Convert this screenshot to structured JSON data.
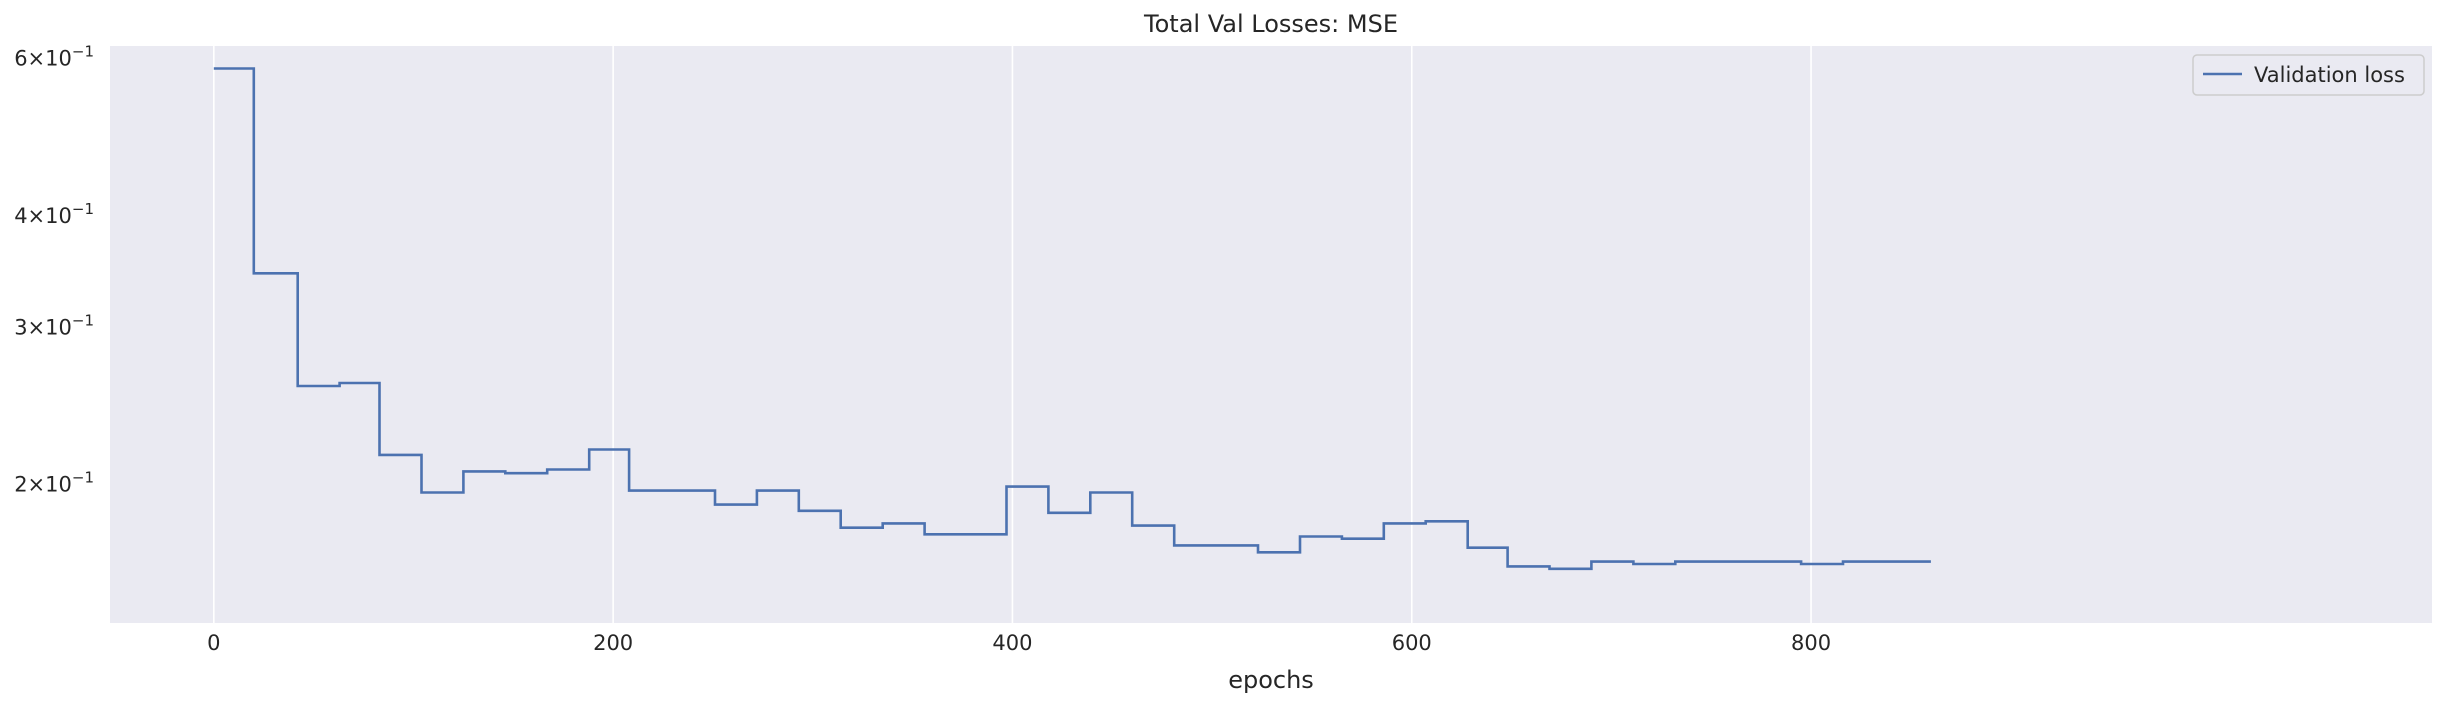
{
  "chart_data": {
    "type": "line",
    "title": "Total Val Losses:  MSE",
    "xlabel": "epochs",
    "ylabel": "",
    "yscale": "log",
    "xlim": [
      -52,
      1111
    ],
    "ylim": [
      0.14,
      0.62
    ],
    "grid": "vertical only",
    "legend_position": "top-right",
    "background": "#eaeaf2",
    "x_ticks": [
      {
        "value": 0,
        "label": "0"
      },
      {
        "value": 200,
        "label": "200"
      },
      {
        "value": 400,
        "label": "400"
      },
      {
        "value": 600,
        "label": "600"
      },
      {
        "value": 800,
        "label": "800"
      }
    ],
    "y_ticks": [
      {
        "value": 0.6,
        "mantissa": "6",
        "base": "10",
        "exponent": "−1"
      },
      {
        "value": 0.4,
        "mantissa": "4",
        "base": "10",
        "exponent": "−1"
      },
      {
        "value": 0.3,
        "mantissa": "3",
        "base": "10",
        "exponent": "−1"
      },
      {
        "value": 0.2,
        "mantissa": "2",
        "base": "10",
        "exponent": "−1"
      }
    ],
    "series": [
      {
        "name": "Validation loss",
        "color": "#4c72b0",
        "step_x": [
          0,
          20,
          42,
          63,
          83,
          104,
          125,
          146,
          167,
          188,
          208,
          230,
          251,
          272,
          293,
          314,
          335,
          356,
          376,
          397,
          418,
          439,
          460,
          481,
          502,
          523,
          544,
          565,
          586,
          607,
          628,
          648,
          669,
          690,
          711,
          732,
          753,
          774,
          795,
          816,
          837,
          858
        ],
        "step_y": [
          0.585,
          0.345,
          0.258,
          0.26,
          0.216,
          0.196,
          0.207,
          0.206,
          0.208,
          0.219,
          0.197,
          0.197,
          0.19,
          0.197,
          0.187,
          0.179,
          0.181,
          0.176,
          0.176,
          0.199,
          0.186,
          0.196,
          0.18,
          0.171,
          0.171,
          0.168,
          0.175,
          0.174,
          0.181,
          0.182,
          0.17,
          0.162,
          0.161,
          0.164,
          0.163,
          0.164,
          0.164,
          0.164,
          0.163,
          0.164,
          0.164,
          0.164
        ]
      }
    ]
  }
}
